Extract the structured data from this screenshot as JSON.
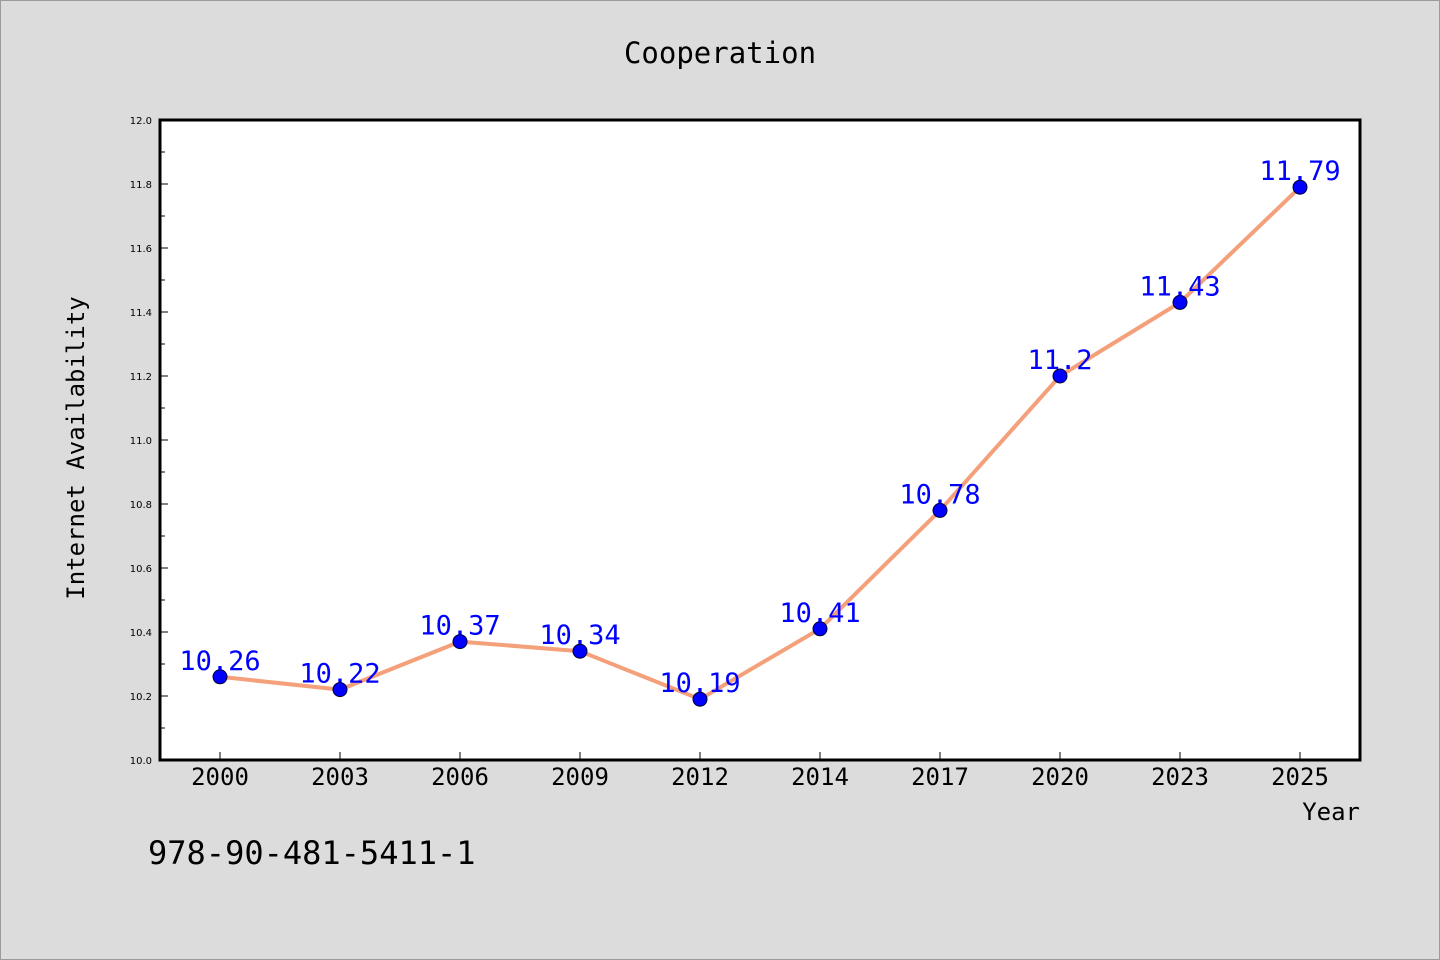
{
  "chart_data": {
    "type": "line",
    "title": "Cooperation",
    "xlabel": "Year",
    "ylabel": "Internet Availability",
    "categories": [
      "2000",
      "2003",
      "2006",
      "2009",
      "2012",
      "2014",
      "2017",
      "2020",
      "2023",
      "2025"
    ],
    "series": [
      {
        "values": [
          10.26,
          10.22,
          10.37,
          10.34,
          10.19,
          10.41,
          10.78,
          11.2,
          11.43,
          11.79
        ],
        "labels": [
          "10.26",
          "10.22",
          "10.37",
          "10.34",
          "10.19",
          "10.41",
          "10.78",
          "11.2",
          "11.43",
          "11.79"
        ],
        "line_color": "#f4a07a",
        "marker_color": "#0000ff",
        "label_color": "#0000ff"
      }
    ],
    "ylim": [
      10.0,
      12.0
    ],
    "yticks": [
      "10.0",
      "10.2",
      "10.4",
      "10.6",
      "10.8",
      "11.0",
      "11.2",
      "11.4",
      "11.6",
      "11.8",
      "12.0"
    ],
    "grid": false,
    "legend": false
  },
  "footer": {
    "isbn": "978-90-481-5411-1"
  },
  "colors": {
    "background": "#dcdcdc",
    "plot_background": "#ffffff"
  }
}
